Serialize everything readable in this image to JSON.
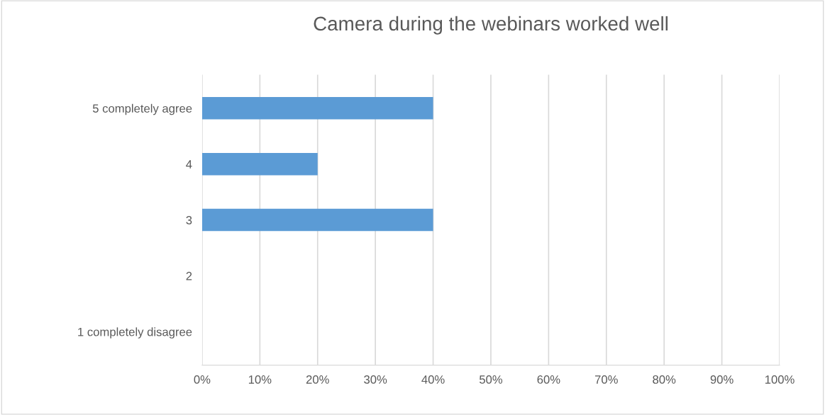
{
  "chart_data": {
    "type": "bar",
    "orientation": "horizontal",
    "title": "Camera during the webinars worked well",
    "categories": [
      "5 completely agree",
      "4",
      "3",
      "2",
      "1 completely disagree"
    ],
    "values": [
      40,
      20,
      40,
      0,
      0
    ],
    "color": "#5b9bd5",
    "xlim": [
      0,
      100
    ],
    "xticks": [
      {
        "value": 0,
        "label": "0%"
      },
      {
        "value": 10,
        "label": "10%"
      },
      {
        "value": 20,
        "label": "20%"
      },
      {
        "value": 30,
        "label": "30%"
      },
      {
        "value": 40,
        "label": "40%"
      },
      {
        "value": 50,
        "label": "50%"
      },
      {
        "value": 60,
        "label": "60%"
      },
      {
        "value": 70,
        "label": "70%"
      },
      {
        "value": 80,
        "label": "80%"
      },
      {
        "value": 90,
        "label": "90%"
      },
      {
        "value": 100,
        "label": "100%"
      }
    ],
    "grid": "x",
    "legend": false
  }
}
